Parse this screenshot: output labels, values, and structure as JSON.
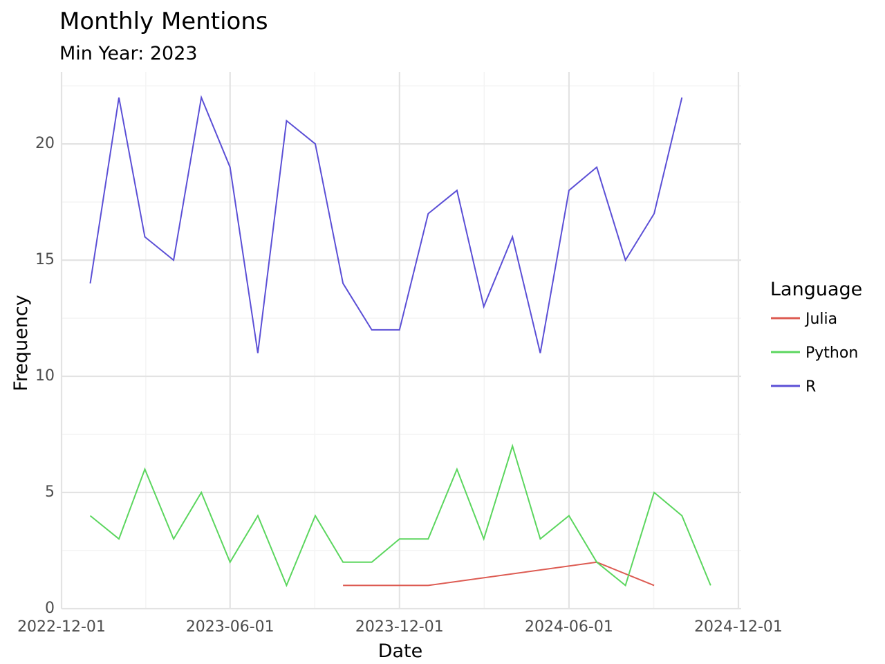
{
  "chart_data": {
    "type": "line",
    "title": "Monthly Mentions",
    "subtitle": "Min Year: 2023",
    "xlabel": "Date",
    "ylabel": "Frequency",
    "xlim": [
      "2022-12-01",
      "2024-12-01"
    ],
    "ylim": [
      0,
      23.1
    ],
    "x_ticks": [
      "2022-12-01",
      "2023-06-01",
      "2023-12-01",
      "2024-06-01",
      "2024-12-01"
    ],
    "y_ticks": [
      0,
      5,
      10,
      15,
      20
    ],
    "grid": true,
    "legend": {
      "title": "Language",
      "placement": "right"
    },
    "series": [
      {
        "name": "Julia",
        "color": "#dd5b52",
        "x": [
          "2023-10-01",
          "2023-12-01",
          "2024-01-01",
          "2024-07-01",
          "2024-09-01"
        ],
        "values": [
          1,
          1,
          1,
          2,
          1
        ]
      },
      {
        "name": "Python",
        "color": "#5bd65e",
        "x": [
          "2023-01-01",
          "2023-02-01",
          "2023-03-01",
          "2023-04-01",
          "2023-05-01",
          "2023-06-01",
          "2023-07-01",
          "2023-08-01",
          "2023-09-01",
          "2023-10-01",
          "2023-11-01",
          "2023-12-01",
          "2024-01-01",
          "2024-02-01",
          "2024-03-01",
          "2024-04-01",
          "2024-05-01",
          "2024-06-01",
          "2024-07-01",
          "2024-08-01",
          "2024-09-01",
          "2024-10-01",
          "2024-11-01"
        ],
        "values": [
          4,
          3,
          6,
          3,
          5,
          2,
          4,
          1,
          4,
          2,
          2,
          3,
          3,
          6,
          3,
          7,
          3,
          4,
          2,
          1,
          5,
          4,
          1
        ]
      },
      {
        "name": "R",
        "color": "#5b4fd6",
        "x": [
          "2023-01-01",
          "2023-02-01",
          "2023-03-01",
          "2023-04-01",
          "2023-05-01",
          "2023-06-01",
          "2023-07-01",
          "2023-08-01",
          "2023-09-01",
          "2023-10-01",
          "2023-11-01",
          "2023-12-01",
          "2024-01-01",
          "2024-02-01",
          "2024-03-01",
          "2024-04-01",
          "2024-05-01",
          "2024-06-01",
          "2024-07-01",
          "2024-08-01",
          "2024-09-01",
          "2024-10-01"
        ],
        "values": [
          14,
          22,
          16,
          15,
          22,
          19,
          11,
          21,
          20,
          14,
          12,
          12,
          17,
          18,
          13,
          16,
          11,
          18,
          19,
          15,
          17,
          22
        ]
      }
    ]
  }
}
